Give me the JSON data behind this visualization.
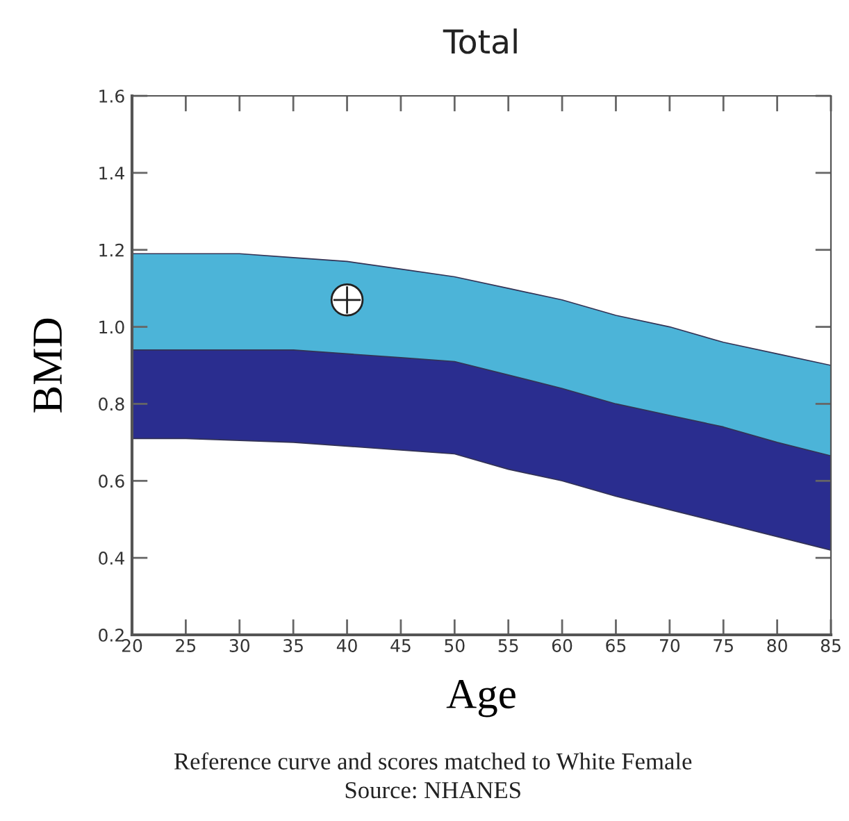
{
  "chart_data": {
    "type": "area",
    "title": "Total",
    "xlabel": "Age",
    "ylabel": "BMD",
    "x": [
      20,
      25,
      30,
      35,
      40,
      45,
      50,
      55,
      60,
      65,
      70,
      75,
      80,
      85
    ],
    "series": [
      {
        "color": "#4cb4d8",
        "values": [
          1.19,
          1.19,
          1.19,
          1.18,
          1.17,
          1.15,
          1.13,
          1.1,
          1.07,
          1.03,
          1.0,
          0.96,
          0.93,
          0.9
        ]
      },
      {
        "color": "#2a2d8f",
        "values": [
          0.94,
          0.94,
          0.94,
          0.94,
          0.93,
          0.92,
          0.91,
          0.875,
          0.84,
          0.8,
          0.77,
          0.74,
          0.7,
          0.665
        ]
      },
      {
        "color": "#ffffff",
        "values": [
          0.71,
          0.71,
          0.705,
          0.7,
          0.69,
          0.68,
          0.67,
          0.63,
          0.6,
          0.56,
          0.525,
          0.49,
          0.455,
          0.42
        ]
      },
      {
        "type": "scatter",
        "x": [
          40
        ],
        "values": [
          1.07
        ],
        "color": "#ffffff",
        "marker": "circle"
      }
    ],
    "xlim": [
      20,
      85
    ],
    "ylim": [
      0.2,
      1.6
    ],
    "xticks": [
      20,
      25,
      30,
      35,
      40,
      45,
      50,
      55,
      60,
      65,
      70,
      75,
      80,
      85
    ],
    "yticks": [
      0.2,
      0.4,
      0.6,
      0.8,
      {
        "value": 1,
        "label": "1.0"
      },
      1.2,
      1.4,
      1.6
    ],
    "annotations": [
      "Reference curve and scores matched to White Female",
      "Source: NHANES"
    ]
  }
}
